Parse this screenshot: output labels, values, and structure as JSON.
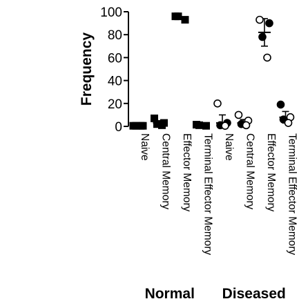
{
  "chart_data": {
    "type": "scatter",
    "title": "",
    "ylabel": "Frequency",
    "xlabel": "",
    "ylim": [
      0,
      100
    ],
    "yticks": [
      0,
      20,
      40,
      60,
      80,
      100
    ],
    "categories": [
      "Naive",
      "Central Memory",
      "Effector Memory",
      "Terminal Effector Memory",
      "Naive",
      "Central Memory",
      "Effector Memory",
      "Terminal Effector Memory"
    ],
    "groups": [
      {
        "label": "Normal",
        "categories": [
          0,
          1,
          2,
          3
        ]
      },
      {
        "label": "Diseased",
        "categories": [
          4,
          5,
          6,
          7
        ]
      }
    ],
    "series": [
      {
        "marker": "square-filled",
        "points": [
          {
            "x": 0,
            "y": 0.5
          },
          {
            "x": 0,
            "y": 0.5
          },
          {
            "x": 0,
            "y": 0.5
          },
          {
            "x": 0,
            "y": 0.5
          },
          {
            "x": 1,
            "y": 7
          },
          {
            "x": 1,
            "y": 3
          },
          {
            "x": 1,
            "y": 2
          },
          {
            "x": 1,
            "y": 1
          },
          {
            "x": 2,
            "y": 96
          },
          {
            "x": 2,
            "y": 93
          },
          {
            "x": 2,
            "y": 96
          },
          {
            "x": 3,
            "y": 1.5
          },
          {
            "x": 3,
            "y": 0.5
          },
          {
            "x": 3,
            "y": 1
          }
        ],
        "summary": [
          {
            "x": 0,
            "mean": 0.5,
            "err": 0
          },
          {
            "x": 1,
            "mean": 3,
            "err": 2
          },
          {
            "x": 2,
            "mean": 95,
            "err": 0
          },
          {
            "x": 3,
            "mean": 1,
            "err": 0
          }
        ]
      },
      {
        "marker": "circle-mixed",
        "points": [
          {
            "x": 4,
            "y": 20,
            "filled": false
          },
          {
            "x": 4,
            "y": 3,
            "filled": true
          },
          {
            "x": 4,
            "y": 1,
            "filled": true
          },
          {
            "x": 4,
            "y": 0.5,
            "filled": false
          },
          {
            "x": 5,
            "y": 10,
            "filled": false
          },
          {
            "x": 5,
            "y": 5,
            "filled": false
          },
          {
            "x": 5,
            "y": 2,
            "filled": true
          },
          {
            "x": 5,
            "y": 1,
            "filled": false
          },
          {
            "x": 6,
            "y": 93,
            "filled": false
          },
          {
            "x": 6,
            "y": 90,
            "filled": true
          },
          {
            "x": 6,
            "y": 78,
            "filled": true
          },
          {
            "x": 6,
            "y": 60,
            "filled": false
          },
          {
            "x": 7,
            "y": 19,
            "filled": true
          },
          {
            "x": 7,
            "y": 8,
            "filled": false
          },
          {
            "x": 7,
            "y": 6,
            "filled": true
          },
          {
            "x": 7,
            "y": 3,
            "filled": false
          }
        ],
        "summary": [
          {
            "x": 4,
            "mean": 3,
            "err": 7
          },
          {
            "x": 5,
            "mean": 3,
            "err": 3
          },
          {
            "x": 6,
            "mean": 82,
            "err": 12
          },
          {
            "x": 7,
            "mean": 8,
            "err": 5
          }
        ]
      }
    ],
    "grid": false,
    "legend": "none"
  }
}
